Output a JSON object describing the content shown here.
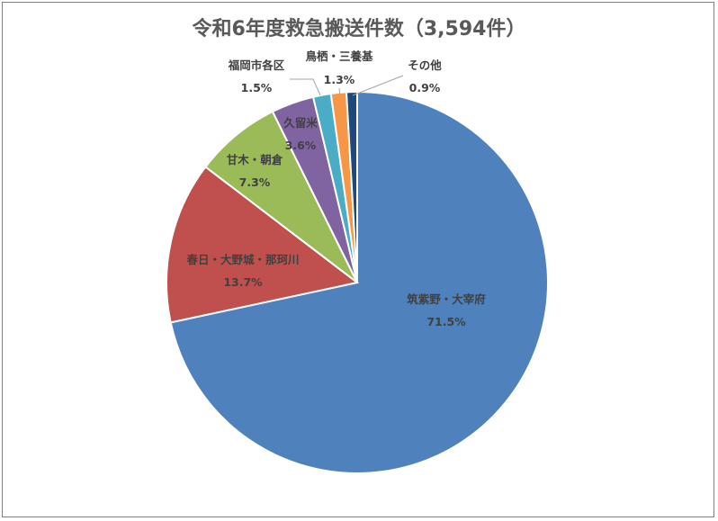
{
  "chart_data": {
    "type": "pie",
    "title": "令和6年度救急搬送件数（3,594件）",
    "categories": [
      "筑紫野・大宰府",
      "春日・大野城・那珂川",
      "甘木・朝倉",
      "久留米",
      "福岡市各区",
      "鳥栖・三養基",
      "その他"
    ],
    "values": [
      71.5,
      13.7,
      7.3,
      3.6,
      1.5,
      1.3,
      0.9
    ],
    "value_labels": [
      "71.5%",
      "13.7%",
      "7.3%",
      "3.6%",
      "1.5%",
      "1.3%",
      "0.9%"
    ],
    "colors": [
      "#4f81bd",
      "#c0504d",
      "#9bbb59",
      "#8064a2",
      "#4bacc6",
      "#f79646",
      "#1f497d"
    ],
    "legend": "none"
  }
}
